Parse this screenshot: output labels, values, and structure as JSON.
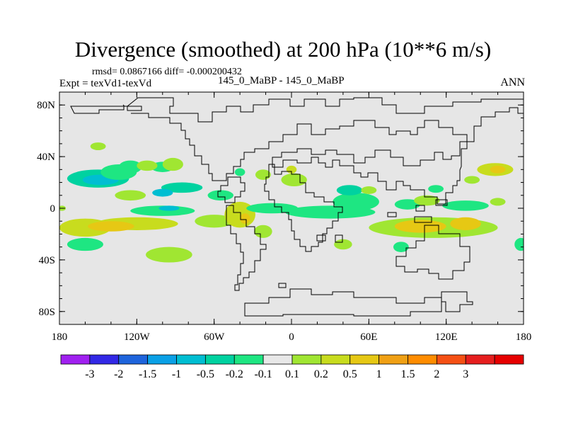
{
  "title": "Divergence (smoothed) at 200 hPa (10**6 m/s)",
  "stats_line": "rmsd= 0.0867166 diff= -0.000200432",
  "left_label": "Expt = texVd1-texVd",
  "center_label": "145_0_MaBP - 145_0_MaBP",
  "right_label": "ANN",
  "chart_data": {
    "type": "heatmap",
    "title": "Divergence (smoothed) at 200 hPa (10**6 m/s)",
    "xlabel": "",
    "ylabel": "",
    "xlim": [
      -180,
      180
    ],
    "ylim": [
      -90,
      90
    ],
    "x_ticks": [
      {
        "value": -180,
        "label": "180"
      },
      {
        "value": -120,
        "label": "120W"
      },
      {
        "value": -60,
        "label": "60W"
      },
      {
        "value": 0,
        "label": "0"
      },
      {
        "value": 60,
        "label": "60E"
      },
      {
        "value": 120,
        "label": "120E"
      },
      {
        "value": 180,
        "label": "180"
      }
    ],
    "y_ticks": [
      {
        "value": 80,
        "label": "80N"
      },
      {
        "value": 40,
        "label": "40N"
      },
      {
        "value": 0,
        "label": "0"
      },
      {
        "value": -40,
        "label": "40S"
      },
      {
        "value": -80,
        "label": "80S"
      }
    ],
    "background_color": "#e6e6e6",
    "colorbar": {
      "colors": [
        "#a020f0",
        "#3228e6",
        "#1e64dc",
        "#0aa0e6",
        "#00bed2",
        "#00d2a0",
        "#1ee682",
        "#e8e8e8",
        "#a0e632",
        "#c8dc1e",
        "#e6c814",
        "#f0a014",
        "#ff8c00",
        "#f55014",
        "#e61e1e",
        "#e60000"
      ],
      "labels": [
        "-3",
        "-2",
        "-1.5",
        "-1",
        "-0.5",
        "-0.2",
        "-0.1",
        "0.1",
        "0.2",
        "0.5",
        "1",
        "1.5",
        "2",
        "3"
      ]
    },
    "field_blobs": [
      {
        "lon": -150,
        "lat": 23,
        "rlon": 24,
        "rlat": 7,
        "value": -0.3
      },
      {
        "lon": -148,
        "lat": 22,
        "rlon": 14,
        "rlat": 4,
        "value": -0.6
      },
      {
        "lon": -125,
        "lat": 32,
        "rlon": 9,
        "rlat": 5,
        "value": -0.15
      },
      {
        "lon": -100,
        "lat": 32,
        "rlon": 9,
        "rlat": 4,
        "value": -0.15
      },
      {
        "lon": -150,
        "lat": 48,
        "rlon": 6,
        "rlat": 3,
        "value": 0.15
      },
      {
        "lon": -92,
        "lat": 34,
        "rlon": 8,
        "rlat": 5,
        "value": 0.15
      },
      {
        "lon": -112,
        "lat": 33,
        "rlon": 8,
        "rlat": 4,
        "value": 0.15
      },
      {
        "lon": -134,
        "lat": 28,
        "rlon": 14,
        "rlat": 6,
        "value": -0.15
      },
      {
        "lon": -85,
        "lat": 16,
        "rlon": 16,
        "rlat": 4,
        "value": -0.3
      },
      {
        "lon": -100,
        "lat": 12,
        "rlon": 8,
        "rlat": 3,
        "value": -0.6
      },
      {
        "lon": -125,
        "lat": 10,
        "rlon": 12,
        "rlat": 4,
        "value": 0.15
      },
      {
        "lon": -55,
        "lat": 10,
        "rlon": 10,
        "rlat": 4,
        "value": -0.15
      },
      {
        "lon": -160,
        "lat": -15,
        "rlon": 20,
        "rlat": 7,
        "value": 0.3
      },
      {
        "lon": -120,
        "lat": -12,
        "rlon": 32,
        "rlat": 5,
        "value": 0.3
      },
      {
        "lon": -140,
        "lat": -14,
        "rlon": 18,
        "rlat": 4,
        "value": 0.6
      },
      {
        "lon": -100,
        "lat": -2,
        "rlon": 25,
        "rlat": 4,
        "value": -0.15
      },
      {
        "lon": -95,
        "lat": 0,
        "rlon": 8,
        "rlat": 2,
        "value": -0.6
      },
      {
        "lon": -60,
        "lat": -10,
        "rlon": 15,
        "rlat": 5,
        "value": 0.15
      },
      {
        "lon": -160,
        "lat": -28,
        "rlon": 14,
        "rlat": 5,
        "value": -0.15
      },
      {
        "lon": -95,
        "lat": -36,
        "rlon": 18,
        "rlat": 6,
        "value": 0.15
      },
      {
        "lon": -40,
        "lat": -5,
        "rlon": 12,
        "rlat": 10,
        "value": 0.3
      },
      {
        "lon": -36,
        "lat": -8,
        "rlon": 4,
        "rlat": 4,
        "value": 0.6
      },
      {
        "lon": -22,
        "lat": -18,
        "rlon": 7,
        "rlat": 5,
        "value": 0.15
      },
      {
        "lon": -22,
        "lat": 26,
        "rlon": 6,
        "rlat": 4,
        "value": 0.15
      },
      {
        "lon": 2,
        "lat": 22,
        "rlon": 10,
        "rlat": 5,
        "value": 0.15
      },
      {
        "lon": 0,
        "lat": 30,
        "rlon": 4,
        "rlat": 3,
        "value": 0.3
      },
      {
        "lon": -40,
        "lat": 28,
        "rlon": 4,
        "rlat": 3,
        "value": -0.15
      },
      {
        "lon": -15,
        "lat": 0,
        "rlon": 20,
        "rlat": 4,
        "value": -0.15
      },
      {
        "lon": 50,
        "lat": 5,
        "rlon": 18,
        "rlat": 7,
        "value": -0.15
      },
      {
        "lon": 45,
        "lat": 14,
        "rlon": 10,
        "rlat": 4,
        "value": -0.3
      },
      {
        "lon": 30,
        "lat": -3,
        "rlon": 35,
        "rlat": 5,
        "value": -0.15
      },
      {
        "lon": 60,
        "lat": 14,
        "rlon": 6,
        "rlat": 3,
        "value": 0.15
      },
      {
        "lon": 40,
        "lat": -28,
        "rlon": 7,
        "rlat": 4,
        "value": 0.15
      },
      {
        "lon": 85,
        "lat": -30,
        "rlon": 6,
        "rlat": 4,
        "value": -0.15
      },
      {
        "lon": 110,
        "lat": -15,
        "rlon": 50,
        "rlat": 8,
        "value": 0.15
      },
      {
        "lon": 100,
        "lat": -14,
        "rlon": 20,
        "rlat": 5,
        "value": 0.6
      },
      {
        "lon": 135,
        "lat": -12,
        "rlon": 12,
        "rlat": 5,
        "value": 0.6
      },
      {
        "lon": 90,
        "lat": 3,
        "rlon": 10,
        "rlat": 4,
        "value": -0.15
      },
      {
        "lon": 105,
        "lat": 6,
        "rlon": 10,
        "rlat": 4,
        "value": 0.15
      },
      {
        "lon": 135,
        "lat": 2,
        "rlon": 18,
        "rlat": 4,
        "value": -0.15
      },
      {
        "lon": 158,
        "lat": 30,
        "rlon": 14,
        "rlat": 5,
        "value": 0.3
      },
      {
        "lon": 160,
        "lat": 30,
        "rlon": 6,
        "rlat": 3,
        "value": 0.6
      },
      {
        "lon": 140,
        "lat": 22,
        "rlon": 6,
        "rlat": 3,
        "value": 0.15
      },
      {
        "lon": 112,
        "lat": 15,
        "rlon": 6,
        "rlat": 3,
        "value": -0.15
      },
      {
        "lon": 160,
        "lat": 5,
        "rlon": 6,
        "rlat": 3,
        "value": 0.15
      },
      {
        "lon": 178,
        "lat": -28,
        "rlon": 5,
        "rlat": 5,
        "value": -0.15
      },
      {
        "lon": -178,
        "lat": 0,
        "rlon": 3,
        "rlat": 2,
        "value": 0.15
      }
    ]
  }
}
